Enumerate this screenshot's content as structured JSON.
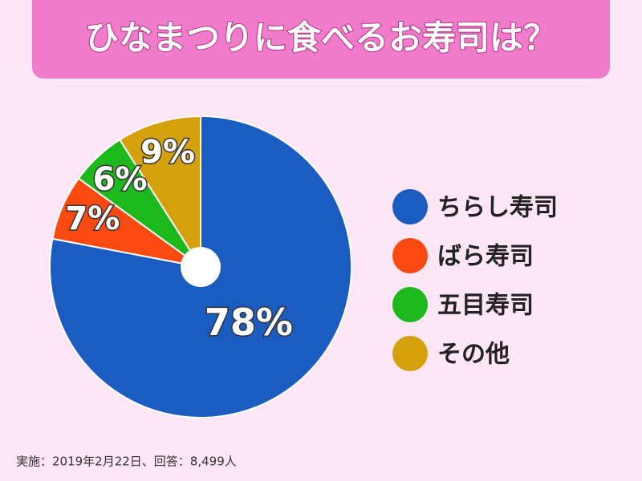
{
  "chart_data": {
    "type": "pie",
    "title": "ひなまつりに食べるお寿司は？",
    "categories": [
      "ちらし寿司",
      "ばら寿司",
      "五目寿司",
      "その他"
    ],
    "values": [
      78,
      7,
      6,
      9
    ],
    "value_labels": [
      "78%",
      "7%",
      "6%",
      "9%"
    ],
    "colors": [
      "#1a5cc0",
      "#fa4a12",
      "#1cb81c",
      "#d4a00c"
    ],
    "legend": "right",
    "note": "実施：2019年2月22日、回答：8,499人"
  }
}
